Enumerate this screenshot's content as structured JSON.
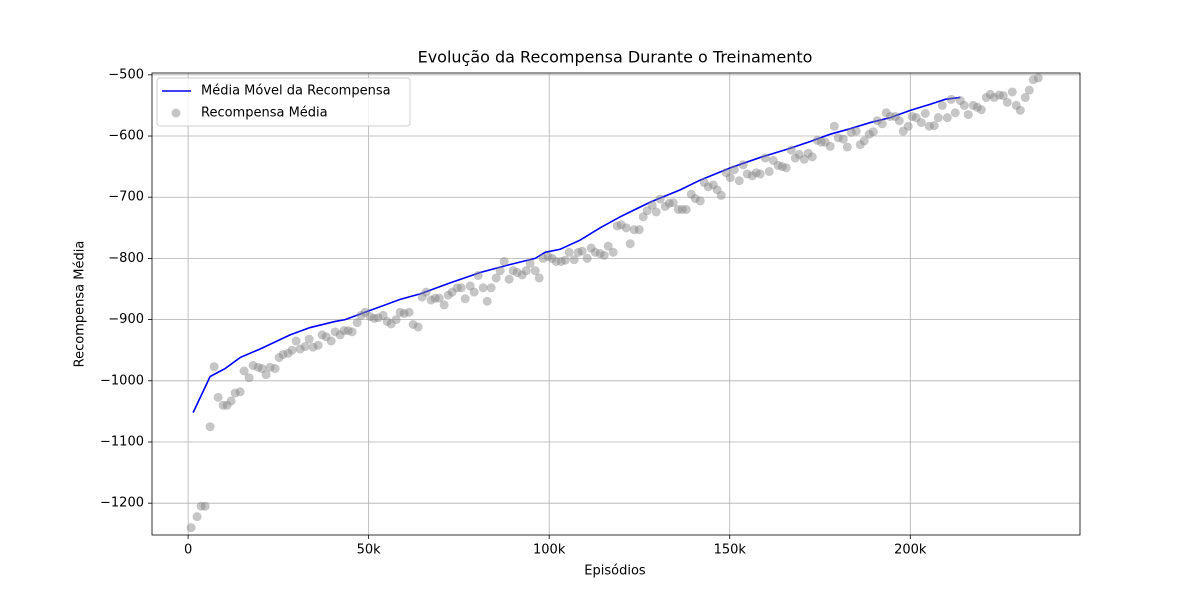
{
  "chart_data": {
    "type": "scatter",
    "title": "Evolução da Recompensa Durante o Treinamento",
    "xlabel": "Episódios",
    "ylabel": "Recompensa Média",
    "xlim": [
      -10000,
      247000
    ],
    "ylim": [
      -1252,
      -497
    ],
    "xticks": [
      0,
      {
        "value": 50000,
        "label": "50k"
      },
      {
        "value": 100000,
        "label": "100k"
      },
      {
        "value": 150000,
        "label": "150k"
      },
      {
        "value": 200000,
        "label": "200k"
      }
    ],
    "yticks": [
      {
        "value": -1200,
        "label": "−1200"
      },
      {
        "value": -1100,
        "label": "−1100"
      },
      {
        "value": -1000,
        "label": "−1000"
      },
      {
        "value": -900,
        "label": "−900"
      },
      {
        "value": -800,
        "label": "−800"
      },
      {
        "value": -700,
        "label": "−700"
      },
      {
        "value": -600,
        "label": "−600"
      },
      {
        "value": -500,
        "label": "−500"
      }
    ],
    "grid": true,
    "legend": "upper left",
    "series": [
      {
        "name": "Média Móvel da Recompensa",
        "type": "line",
        "color": "blue",
        "x": [
          1385,
          6094,
          10249,
          14404,
          19944,
          28254,
          33794,
          40719,
          43489,
          50414,
          58724,
          64264,
          72574,
          80884,
          89194,
          96119,
          98889,
          103044,
          108584,
          114124,
          119664,
          127974,
          136284,
          141824,
          150134,
          158444,
          166754,
          172294,
          177834,
          183374,
          188914,
          194454,
          199994,
          205534,
          209689,
          213844
        ],
        "values": [
          -1052,
          -993,
          -980,
          -962,
          -948,
          -925,
          -913,
          -903,
          -900,
          -885,
          -867,
          -858,
          -840,
          -823,
          -810,
          -800,
          -790,
          -785,
          -770,
          -750,
          -732,
          -708,
          -688,
          -672,
          -652,
          -635,
          -620,
          -609,
          -597,
          -588,
          -578,
          -570,
          -558,
          -548,
          -540,
          -537
        ]
      },
      {
        "name": "Recompensa Média",
        "type": "scatter",
        "color": "gray",
        "alpha": 0.45,
        "x": [
          831,
          2493,
          3601,
          4709,
          6094,
          7202,
          8310,
          9695,
          10803,
          11911,
          13019,
          14404,
          15512,
          16897,
          18005,
          19390,
          20498,
          21606,
          22714,
          24099,
          25207,
          26315,
          27700,
          28808,
          29916,
          31024,
          32409,
          33517,
          34625,
          36010,
          37118,
          38226,
          39611,
          40719,
          42104,
          43212,
          44320,
          45428,
          46813,
          47921,
          49029,
          50414,
          51522,
          52630,
          54015,
          55123,
          56231,
          57616,
          58724,
          59832,
          61217,
          62325,
          63710,
          64818,
          65926,
          67311,
          68419,
          69527,
          70912,
          72020,
          73128,
          74513,
          75621,
          76729,
          78114,
          79222,
          80330,
          81715,
          82823,
          83931,
          85316,
          86424,
          87532,
          88917,
          90025,
          91133,
          92518,
          93626,
          94734,
          96119,
          97227,
          98335,
          99720,
          100828,
          101936,
          103321,
          104429,
          105537,
          106922,
          108030,
          109138,
          110523,
          111631,
          112739,
          114124,
          115232,
          116340,
          117725,
          118833,
          119941,
          121326,
          122434,
          123542,
          124927,
          126035,
          127143,
          128528,
          129636,
          130744,
          132129,
          133237,
          134345,
          135730,
          136838,
          137946,
          139331,
          140439,
          141824,
          142932,
          144040,
          145425,
          146533,
          147641,
          149026,
          150134,
          151242,
          152627,
          153735,
          154843,
          156228,
          157336,
          158444,
          159829,
          160937,
          162045,
          163430,
          164538,
          165646,
          167031,
          168139,
          169247,
          170632,
          171740,
          172848,
          174233,
          175341,
          176449,
          177834,
          178942,
          180050,
          181435,
          182543,
          183651,
          185036,
          186144,
          187252,
          188637,
          189745,
          190853,
          192238,
          193346,
          194454,
          195839,
          196947,
          198055,
          199440,
          200548,
          201656,
          203041,
          204149,
          205257,
          206642,
          207750,
          208858,
          210243,
          211351,
          212459,
          213844,
          214952,
          216060,
          217445,
          218553,
          219661,
          221046,
          222154,
          223262,
          224647,
          225755,
          226863,
          228248,
          229356,
          230464,
          231849,
          232957,
          234065,
          235450
        ],
        "values": [
          -1240,
          -1222,
          -1205,
          -1205,
          -1075,
          -977,
          -1027,
          -1040,
          -1040,
          -1033,
          -1020,
          -1018,
          -984,
          -995,
          -975,
          -978,
          -980,
          -990,
          -978,
          -980,
          -962,
          -957,
          -955,
          -950,
          -935,
          -948,
          -944,
          -932,
          -945,
          -942,
          -925,
          -928,
          -935,
          -920,
          -925,
          -918,
          -918,
          -920,
          -905,
          -893,
          -888,
          -895,
          -898,
          -897,
          -893,
          -903,
          -907,
          -900,
          -888,
          -890,
          -888,
          -908,
          -912,
          -863,
          -855,
          -868,
          -865,
          -865,
          -876,
          -860,
          -855,
          -848,
          -848,
          -866,
          -845,
          -855,
          -828,
          -848,
          -870,
          -848,
          -832,
          -820,
          -805,
          -834,
          -820,
          -823,
          -827,
          -820,
          -808,
          -820,
          -832,
          -800,
          -797,
          -800,
          -805,
          -805,
          -803,
          -790,
          -802,
          -790,
          -788,
          -800,
          -783,
          -790,
          -792,
          -795,
          -780,
          -790,
          -747,
          -745,
          -750,
          -776,
          -753,
          -753,
          -732,
          -722,
          -713,
          -724,
          -703,
          -715,
          -710,
          -709,
          -720,
          -720,
          -720,
          -695,
          -702,
          -706,
          -676,
          -683,
          -680,
          -688,
          -697,
          -660,
          -668,
          -655,
          -673,
          -647,
          -662,
          -665,
          -660,
          -662,
          -636,
          -658,
          -640,
          -648,
          -650,
          -652,
          -623,
          -636,
          -630,
          -638,
          -628,
          -634,
          -607,
          -610,
          -610,
          -617,
          -584,
          -603,
          -605,
          -618,
          -594,
          -592,
          -614,
          -608,
          -597,
          -593,
          -575,
          -580,
          -562,
          -568,
          -568,
          -575,
          -592,
          -584,
          -568,
          -570,
          -578,
          -563,
          -584,
          -583,
          -570,
          -550,
          -570,
          -540,
          -562,
          -542,
          -550,
          -565,
          -550,
          -553,
          -557,
          -537,
          -532,
          -537,
          -533,
          -534,
          -545,
          -528,
          -550,
          -558,
          -537,
          -525,
          -508,
          -505
        ]
      }
    ]
  }
}
